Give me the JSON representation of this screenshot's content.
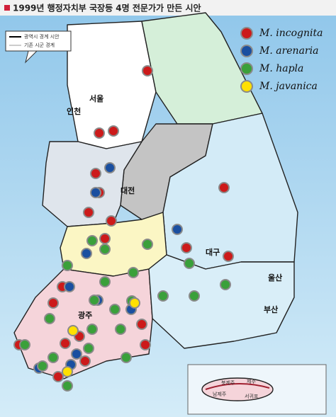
{
  "header": {
    "title": "1999년 행정자치부 국장등 4명 전문가가 만든 시안"
  },
  "boundary_legend": [
    "광역시 경계 시안",
    "기존 시군 경계"
  ],
  "legend": [
    "M.  incognita",
    "M.  arenaria",
    "M.  hapla",
    "M.  javanica"
  ],
  "cities": [
    "서울",
    "인천",
    "대전",
    "광주",
    "대구",
    "울산",
    "부산"
  ],
  "jeju": [
    "북제주",
    "제주",
    "남제주",
    "서귀포"
  ]
}
